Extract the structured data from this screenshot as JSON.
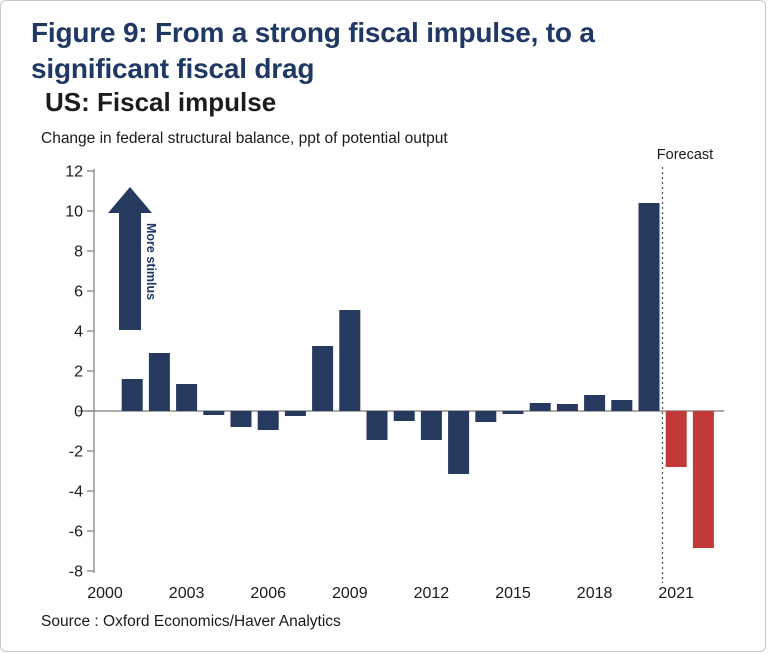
{
  "header": {
    "title_line1": "Figure 9: From a strong fiscal impulse, to a",
    "title_line2": "significant fiscal drag"
  },
  "chart_data": {
    "type": "bar",
    "title": "US: Fiscal impulse",
    "subtitle": "Change in federal structural balance, ppt of potential output",
    "categories": [
      2000,
      2001,
      2002,
      2003,
      2004,
      2005,
      2006,
      2007,
      2008,
      2009,
      2010,
      2011,
      2012,
      2013,
      2014,
      2015,
      2016,
      2017,
      2018,
      2019,
      2020,
      2021,
      2022
    ],
    "values": [
      0,
      1.6,
      2.9,
      1.35,
      -0.2,
      -0.8,
      -0.95,
      -0.25,
      3.25,
      5.05,
      -1.45,
      -0.5,
      -1.45,
      -3.15,
      -0.55,
      -0.15,
      0.4,
      0.35,
      0.8,
      0.55,
      10.4,
      -2.8,
      -6.85
    ],
    "forecast_start_year": 2021,
    "forecast_label": "Forecast",
    "annotation_arrow_label": "More stimlus",
    "xticks": [
      2000,
      2003,
      2006,
      2009,
      2012,
      2015,
      2018,
      2021
    ],
    "ylim": [
      -8,
      12
    ],
    "ytick_step": 2,
    "grid": "none",
    "legend": "none",
    "colors": {
      "actual_bar": "#253a5e",
      "forecast_bar": "#c13a38",
      "title_navy": "#1f3864",
      "axis": "#8f8f8f",
      "text": "#1a1a1a"
    }
  },
  "footer": {
    "source": "Source : Oxford Economics/Haver Analytics"
  }
}
